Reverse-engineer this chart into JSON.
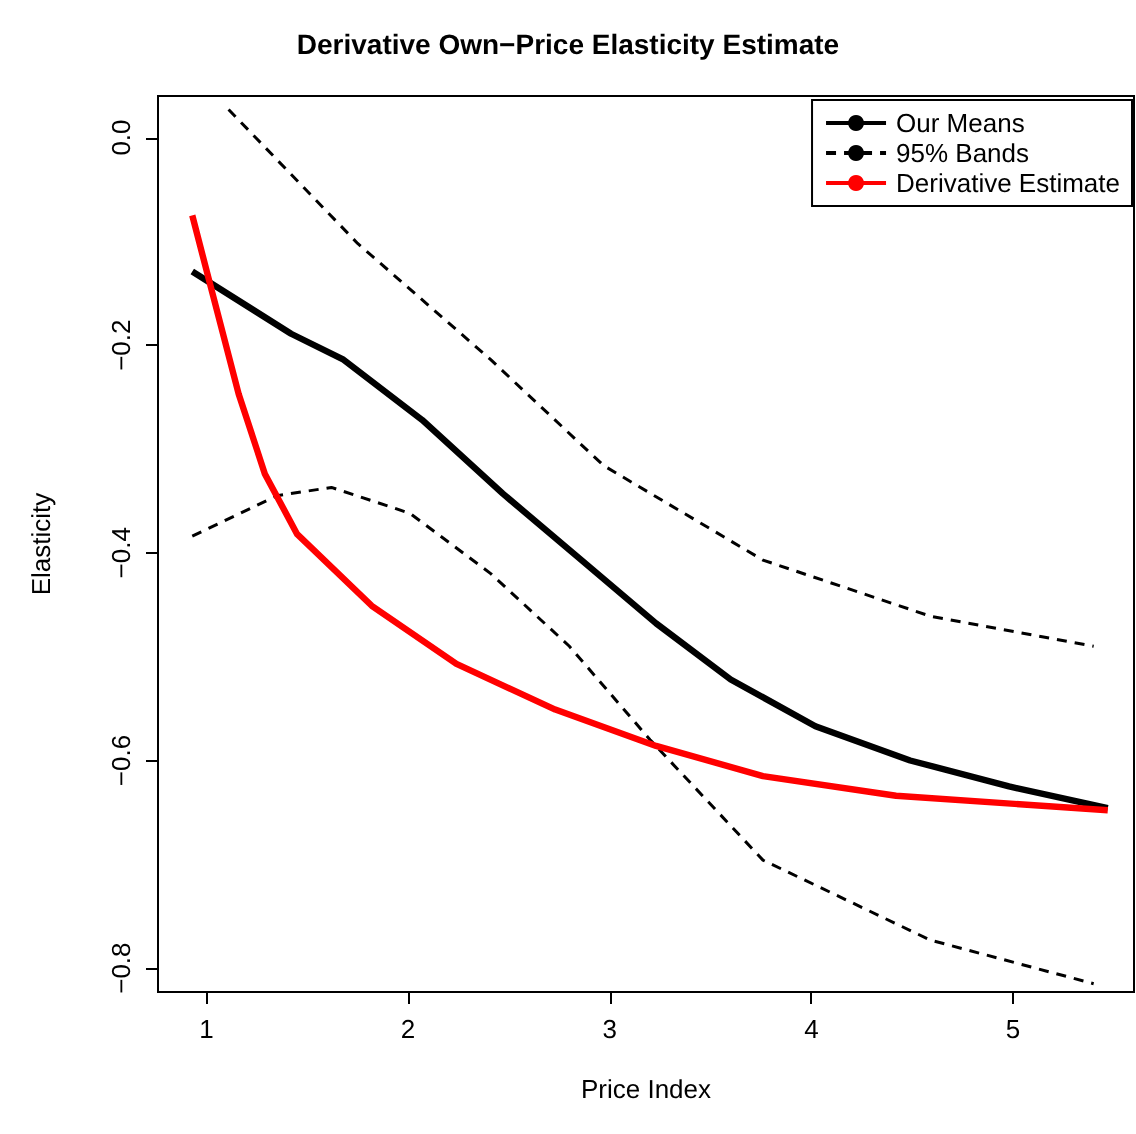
{
  "chart_data": {
    "type": "line",
    "title": "Derivative Own−Price Elasticity Estimate",
    "xlabel": "Price Index",
    "ylabel": "Elasticity",
    "xlim": [
      0.76,
      5.6
    ],
    "ylim": [
      -0.823,
      0.04
    ],
    "xticks": [
      1,
      2,
      3,
      4,
      5
    ],
    "yticks": [
      {
        "value": 0,
        "label": "0.0"
      },
      {
        "value": -0.2,
        "label": "−0.2"
      },
      {
        "value": -0.4,
        "label": "−0.4"
      },
      {
        "value": -0.6,
        "label": "−0.6"
      },
      {
        "value": -0.8,
        "label": "−0.8"
      }
    ],
    "grid": false,
    "legend": "top right",
    "marker": "none",
    "series": [
      {
        "name": "Our Means",
        "color": "#000000",
        "line_style": "solid",
        "x": [
          0.93,
          1.42,
          1.68,
          2.07,
          2.47,
          2.86,
          3.23,
          3.6,
          4.02,
          4.49,
          4.98,
          5.47
        ],
        "values": [
          -0.129,
          -0.189,
          -0.214,
          -0.272,
          -0.343,
          -0.407,
          -0.468,
          -0.522,
          -0.567,
          -0.6,
          -0.625,
          -0.646
        ]
      },
      {
        "name": "95% Bands",
        "color": "#000000",
        "line_style": "dashed",
        "x": [
          1.11,
          1.75,
          2.41,
          2.97,
          3.76,
          4.59,
          5.4
        ],
        "values": [
          0.027,
          -0.102,
          -0.214,
          -0.316,
          -0.407,
          -0.461,
          -0.49
        ]
      },
      {
        "color": "#000000",
        "line_style": "dashed",
        "x": [
          0.93,
          1.35,
          1.62,
          2.01,
          2.41,
          2.8,
          3.2,
          3.76,
          4.59,
          5.4
        ],
        "values": [
          -0.384,
          -0.345,
          -0.337,
          -0.362,
          -0.42,
          -0.49,
          -0.58,
          -0.696,
          -0.773,
          -0.815
        ]
      },
      {
        "name": "Derivative Estimate",
        "color": "#ff0000",
        "line_style": "solid",
        "x": [
          0.93,
          1.03,
          1.16,
          1.29,
          1.45,
          1.82,
          2.24,
          2.73,
          3.23,
          3.76,
          4.42,
          5.47
        ],
        "values": [
          -0.075,
          -0.15,
          -0.247,
          -0.324,
          -0.382,
          -0.451,
          -0.507,
          -0.551,
          -0.586,
          -0.615,
          -0.634,
          -0.648
        ]
      }
    ]
  }
}
